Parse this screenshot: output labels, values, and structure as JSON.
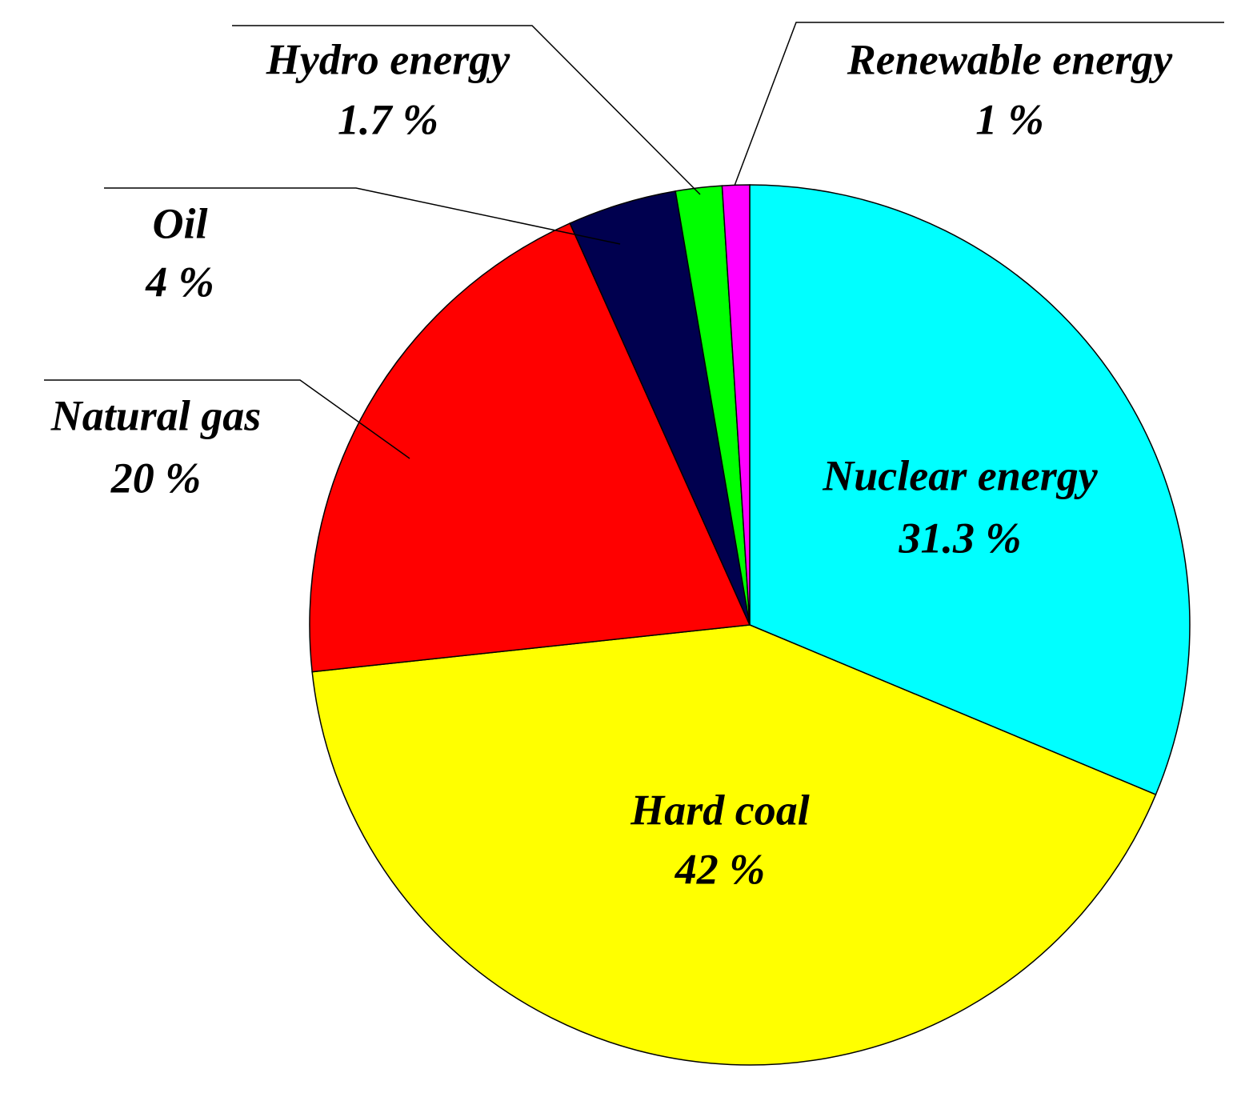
{
  "chart_data": {
    "type": "pie",
    "categories": [
      "Nuclear energy",
      "Hard coal",
      "Natural gas",
      "Oil",
      "Hydro energy",
      "Renewable energy"
    ],
    "values": [
      31.3,
      42,
      20,
      4,
      1.7,
      1
    ],
    "value_labels": [
      "31.3 %",
      "42 %",
      "20 %",
      "4 %",
      "1.7 %",
      "1 %"
    ],
    "colors": [
      "#00ffff",
      "#ffff00",
      "#ff0000",
      "#00004f",
      "#00ff00",
      "#ff00ff"
    ]
  }
}
